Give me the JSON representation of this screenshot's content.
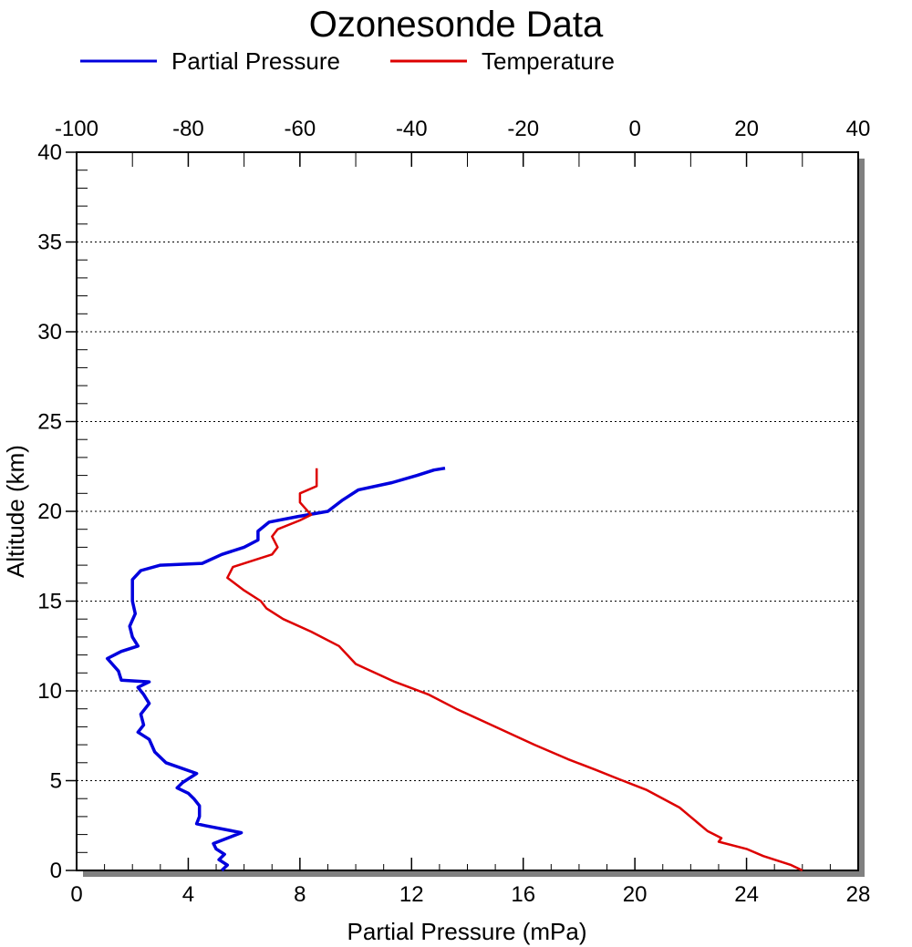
{
  "chart_data": {
    "type": "line",
    "title": "Ozonesonde Data",
    "xlabel": "Partial Pressure (mPa)",
    "ylabel": "Altitude (km)",
    "x_bottom": {
      "min": 0,
      "max": 28,
      "ticks": [
        0,
        4,
        8,
        12,
        16,
        20,
        24,
        28
      ]
    },
    "x_top": {
      "min": -100,
      "max": 40,
      "ticks": [
        -100,
        -80,
        -60,
        -40,
        -20,
        0,
        20,
        40
      ]
    },
    "y": {
      "min": 0,
      "max": 40,
      "ticks": [
        0,
        5,
        10,
        15,
        20,
        25,
        30,
        35,
        40
      ]
    },
    "grid": "horizontal dotted lines at major y ticks",
    "legend": "top",
    "series": [
      {
        "name": "Partial Pressure",
        "axis": "bottom",
        "color": "#0000dd",
        "points": [
          [
            5.2,
            0.0
          ],
          [
            5.4,
            0.3
          ],
          [
            5.1,
            0.6
          ],
          [
            5.3,
            0.9
          ],
          [
            5.0,
            1.2
          ],
          [
            4.9,
            1.5
          ],
          [
            5.9,
            2.1
          ],
          [
            4.6,
            2.5
          ],
          [
            4.3,
            2.6
          ],
          [
            4.4,
            3.0
          ],
          [
            4.4,
            3.3
          ],
          [
            4.4,
            3.6
          ],
          [
            4.2,
            4.0
          ],
          [
            4.0,
            4.3
          ],
          [
            3.6,
            4.6
          ],
          [
            3.8,
            4.9
          ],
          [
            4.3,
            5.4
          ],
          [
            3.2,
            6.0
          ],
          [
            2.8,
            6.6
          ],
          [
            2.6,
            7.3
          ],
          [
            2.2,
            7.7
          ],
          [
            2.4,
            8.1
          ],
          [
            2.3,
            8.7
          ],
          [
            2.6,
            9.3
          ],
          [
            2.4,
            9.8
          ],
          [
            2.2,
            10.2
          ],
          [
            2.6,
            10.5
          ],
          [
            1.6,
            10.6
          ],
          [
            1.5,
            11.1
          ],
          [
            1.1,
            11.8
          ],
          [
            1.6,
            12.2
          ],
          [
            2.2,
            12.5
          ],
          [
            2.0,
            13.0
          ],
          [
            1.9,
            13.6
          ],
          [
            2.1,
            14.3
          ],
          [
            2.0,
            15.0
          ],
          [
            2.0,
            15.5
          ],
          [
            2.0,
            16.2
          ],
          [
            2.3,
            16.7
          ],
          [
            3.0,
            17.0
          ],
          [
            4.5,
            17.1
          ],
          [
            5.2,
            17.6
          ],
          [
            6.0,
            18.0
          ],
          [
            6.5,
            18.4
          ],
          [
            6.5,
            18.9
          ],
          [
            6.9,
            19.4
          ],
          [
            7.9,
            19.7
          ],
          [
            9.0,
            20.0
          ],
          [
            9.5,
            20.6
          ],
          [
            10.1,
            21.2
          ],
          [
            11.3,
            21.6
          ],
          [
            12.2,
            22.0
          ],
          [
            12.8,
            22.3
          ],
          [
            13.2,
            22.4
          ]
        ]
      },
      {
        "name": "Temperature",
        "axis": "top",
        "color": "#dd0000",
        "points": [
          [
            30,
            0.0
          ],
          [
            28,
            0.3
          ],
          [
            23,
            0.8
          ],
          [
            20,
            1.2
          ],
          [
            15,
            1.6
          ],
          [
            15.5,
            1.8
          ],
          [
            13,
            2.2
          ],
          [
            8,
            3.5
          ],
          [
            2,
            4.5
          ],
          [
            -3,
            5.1
          ],
          [
            -7,
            5.6
          ],
          [
            -12,
            6.2
          ],
          [
            -18,
            7.0
          ],
          [
            -25,
            8.0
          ],
          [
            -32,
            9.0
          ],
          [
            -37,
            9.8
          ],
          [
            -43,
            10.5
          ],
          [
            -50,
            11.5
          ],
          [
            -53,
            12.5
          ],
          [
            -58,
            13.3
          ],
          [
            -63,
            14.0
          ],
          [
            -66,
            14.6
          ],
          [
            -67,
            15.0
          ],
          [
            -70,
            15.6
          ],
          [
            -73,
            16.3
          ],
          [
            -72,
            16.9
          ],
          [
            -68,
            17.3
          ],
          [
            -65,
            17.6
          ],
          [
            -64,
            18.0
          ],
          [
            -65,
            18.6
          ],
          [
            -64,
            19.0
          ],
          [
            -60,
            19.5
          ],
          [
            -58,
            19.8
          ],
          [
            -60,
            20.5
          ],
          [
            -60,
            21.0
          ],
          [
            -57,
            21.4
          ],
          [
            -57,
            22.0
          ],
          [
            -57,
            22.4
          ]
        ]
      }
    ]
  },
  "colors": {
    "frame": "#000000",
    "shadow": "#808080",
    "grid": "#000000"
  }
}
